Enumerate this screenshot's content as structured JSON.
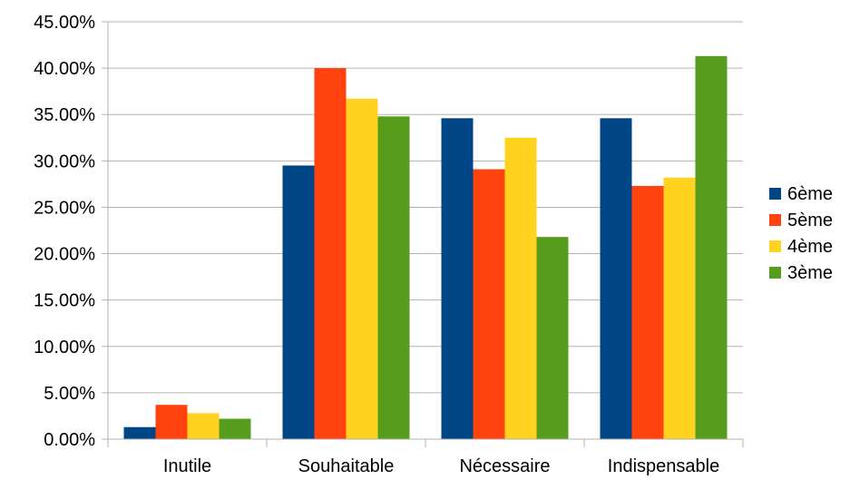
{
  "chart_data": {
    "type": "bar",
    "categories": [
      "Inutile",
      "Souhaitable",
      "Nécessaire",
      "Indispensable"
    ],
    "series": [
      {
        "name": "6ème",
        "color": "#004586",
        "values": [
          1.3,
          29.5,
          34.6,
          34.6
        ]
      },
      {
        "name": "5ème",
        "color": "#FF420E",
        "values": [
          3.7,
          40.0,
          29.1,
          27.3
        ]
      },
      {
        "name": "4ème",
        "color": "#FFD320",
        "values": [
          2.8,
          36.7,
          32.5,
          28.2
        ]
      },
      {
        "name": "3ème",
        "color": "#579D1C",
        "values": [
          2.2,
          34.8,
          21.8,
          41.3
        ]
      }
    ],
    "ylim": [
      0,
      45
    ],
    "yticks": [
      "0.00%",
      "5.00%",
      "10.00%",
      "15.00%",
      "20.00%",
      "25.00%",
      "30.00%",
      "35.00%",
      "40.00%",
      "45.00%"
    ],
    "grid": true,
    "legend_position": "right",
    "title": "",
    "xlabel": "",
    "ylabel": ""
  }
}
